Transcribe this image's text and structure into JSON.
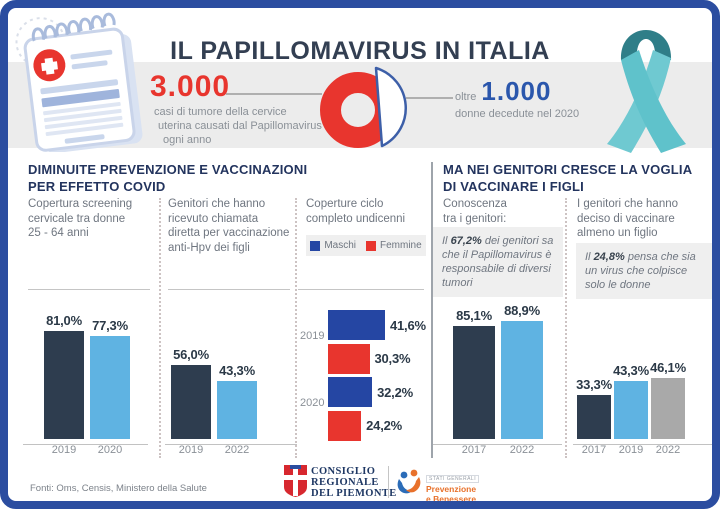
{
  "palette": {
    "frame": "#2B4DA0",
    "red": "#E8352E",
    "blue_stat": "#2A56AC",
    "dark": "#2E3D4F",
    "light": "#5FB3E2",
    "gray_bar": "#A9A9A9",
    "maschi": "#2546A3",
    "femmine": "#E8352E",
    "teal": "#5FC2CB",
    "teal_dark": "#2F7E88",
    "navy_text": "#23345E"
  },
  "header": {
    "title": "IL PAPILLOMAVIRUS IN ITALIA",
    "stat_left": {
      "value": "3.000",
      "caption_lines": [
        "casi di tumore della cervice",
        "uterina causati dal Papillomavirus",
        "ogni anno"
      ]
    },
    "stat_right": {
      "prefix": "oltre",
      "value": "1.000",
      "caption": "donne decedute nel 2020"
    }
  },
  "sections": {
    "left_title_line1": "DIMINUITE PREVENZIONE E VACCINAZIONI",
    "left_title_line2": "PER EFFETTO COVID",
    "right_title_line1": "MA NEI GENITORI CRESCE LA VOGLIA",
    "right_title_line2": "DI VACCINARE I FIGLI"
  },
  "columns": {
    "col1_header": "Copertura screening\ncervicale tra donne\n25 - 64 anni",
    "col2_header": "Genitori che hanno\nricevuto chiamata\ndiretta per vaccinazione\nanti-Hpv dei figli",
    "col3_header": "Coperture ciclo\ncompleto undicenni",
    "col4_header": "Conoscenza\ntra i genitori:",
    "col5_header": "I genitori che hanno\ndeciso di vaccinare\nalmeno un figlio"
  },
  "legend": {
    "maschi": "Maschi",
    "femmine": "Femmine"
  },
  "callouts": {
    "c1_before": "Il ",
    "c1_pct": "67,2%",
    "c1_after": " dei genitori sa che il Papillomavirus è responsabile di diversi tumori",
    "c2_before": "Il ",
    "c2_pct": "24,8%",
    "c2_after": " pensa che sia un virus che colpisce solo le donne"
  },
  "footer": {
    "sources": "Fonti: Oms, Censis, Ministero della Salute",
    "logo_piemonte_line1": "CONSIGLIO",
    "logo_piemonte_line2": "REGIONALE",
    "logo_piemonte_line3": "DEL PIEMONTE",
    "logo_sg_small": "STATI GENERALI",
    "logo_sg_line1": "Prevenzione",
    "logo_sg_line2": "e Benessere"
  },
  "chart_data": [
    {
      "type": "pie",
      "subtype": "donut-illustration",
      "title": "Il Papillomavirus in Italia",
      "annotations": [
        "3.000 casi di tumore della cervice uterina causati dal Papillomavirus ogni anno",
        "oltre 1.000 donne decedute nel 2020"
      ],
      "style": "red donut with exploded slice outlined in blue (illustrative, no numeric slices shown)"
    },
    {
      "type": "bar",
      "title": "Copertura screening cervicale tra donne 25 - 64 anni",
      "categories": [
        "2019",
        "2020"
      ],
      "values": [
        81.0,
        77.3
      ],
      "labels": [
        "81,0%",
        "77,3%"
      ],
      "colors": [
        "dark",
        "light"
      ],
      "unit": "%",
      "ylim": [
        0,
        100
      ],
      "grid": false
    },
    {
      "type": "bar",
      "title": "Genitori che hanno ricevuto chiamata diretta per vaccinazione anti-Hpv dei figli",
      "categories": [
        "2019",
        "2022"
      ],
      "values": [
        56.0,
        43.3
      ],
      "labels": [
        "56,0%",
        "43,3%"
      ],
      "colors": [
        "dark",
        "light"
      ],
      "unit": "%",
      "ylim": [
        0,
        100
      ],
      "grid": false
    },
    {
      "type": "bar",
      "subtype": "horizontal",
      "title": "Coperture ciclo completo undicenni",
      "legend_position": "top",
      "groups": [
        {
          "year": "2019",
          "bars": [
            {
              "series": "Maschi",
              "value": 41.6,
              "label": "41,6%",
              "color": "maschi"
            },
            {
              "series": "Femmine",
              "value": 30.3,
              "label": "30,3%",
              "color": "femmine"
            }
          ]
        },
        {
          "year": "2020",
          "bars": [
            {
              "series": "Maschi",
              "value": 32.2,
              "label": "32,2%",
              "color": "maschi"
            },
            {
              "series": "Femmine",
              "value": 24.2,
              "label": "24,2%",
              "color": "femmine"
            }
          ]
        }
      ],
      "unit": "%",
      "xlim": [
        0,
        50
      ],
      "grid": false
    },
    {
      "type": "bar",
      "title": "Conoscenza tra i genitori",
      "categories": [
        "2017",
        "2022"
      ],
      "values": [
        85.1,
        88.9
      ],
      "labels": [
        "85,1%",
        "88,9%"
      ],
      "colors": [
        "dark",
        "light"
      ],
      "unit": "%",
      "ylim": [
        0,
        100
      ],
      "grid": false
    },
    {
      "type": "bar",
      "title": "I genitori che hanno deciso di vaccinare almeno un figlio",
      "categories": [
        "2017",
        "2019",
        "2022"
      ],
      "values": [
        33.3,
        43.3,
        46.1
      ],
      "labels": [
        "33,3%",
        "43,3%",
        "46,1%"
      ],
      "colors": [
        "dark",
        "light",
        "gray_bar"
      ],
      "unit": "%",
      "ylim": [
        0,
        100
      ],
      "grid": false
    }
  ]
}
